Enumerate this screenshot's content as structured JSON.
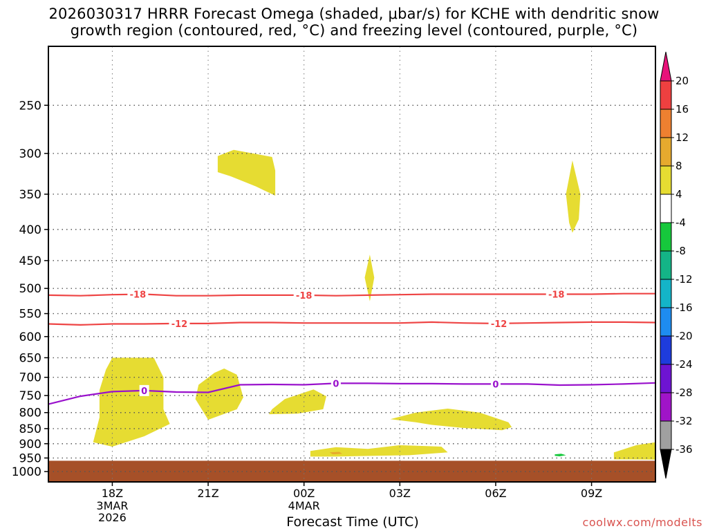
{
  "title_lines": [
    "2026030317 HRRR Forecast Omega (shaded, μbar/s) for KCHE with dendritic snow",
    "growth region (contoured, red, °C) and freezing level (contoured, purple, °C)"
  ],
  "credit": "coolwx.com/modelts",
  "chart_data": {
    "type": "time-height cross-section",
    "title": "2026030317 HRRR Forecast Omega (shaded, μbar/s) for KCHE with dendritic snow growth region (contoured, red, °C) and freezing level (contoured, purple, °C)",
    "xlabel": "Forecast Time (UTC)",
    "ylabel": "",
    "grid": true,
    "x_range_hours_after_2026030317Z": [
      -1,
      18
    ],
    "y_range_hPa": [
      200,
      1040
    ],
    "y_ticks": [
      250,
      300,
      350,
      400,
      450,
      500,
      550,
      600,
      650,
      700,
      750,
      800,
      850,
      900,
      950,
      1000
    ],
    "x_ticks": [
      {
        "t": 1,
        "label": "18Z",
        "sub": [
          "3MAR",
          "2026"
        ]
      },
      {
        "t": 4,
        "label": "21Z",
        "sub": []
      },
      {
        "t": 7,
        "label": "00Z",
        "sub": [
          "4MAR"
        ]
      },
      {
        "t": 10,
        "label": "03Z",
        "sub": []
      },
      {
        "t": 13,
        "label": "06Z",
        "sub": []
      },
      {
        "t": 16,
        "label": "09Z",
        "sub": []
      }
    ],
    "colorbar": {
      "bins": [
        {
          "from": 20,
          "to": null,
          "color": "#e8127a"
        },
        {
          "from": 16,
          "to": 20,
          "color": "#ee4040"
        },
        {
          "from": 12,
          "to": 16,
          "color": "#ee8030"
        },
        {
          "from": 8,
          "to": 12,
          "color": "#e6aa2e"
        },
        {
          "from": 4,
          "to": 8,
          "color": "#e6dc32"
        },
        {
          "from": -4,
          "to": 4,
          "color": "#ffffff"
        },
        {
          "from": -8,
          "to": -4,
          "color": "#16c83c"
        },
        {
          "from": -12,
          "to": -8,
          "color": "#14b487"
        },
        {
          "from": -16,
          "to": -12,
          "color": "#14b4c8"
        },
        {
          "from": -20,
          "to": -16,
          "color": "#1e8cf0"
        },
        {
          "from": -24,
          "to": -20,
          "color": "#1e3cdc"
        },
        {
          "from": -28,
          "to": -24,
          "color": "#6e14d2"
        },
        {
          "from": -32,
          "to": -28,
          "color": "#a014c8"
        },
        {
          "from": -36,
          "to": -32,
          "color": "#a0a0a0"
        },
        {
          "from": null,
          "to": -36,
          "color": "#000000"
        }
      ],
      "tick_labels": [
        "20",
        "16",
        "12",
        "8",
        "4",
        "-4",
        "-8",
        "-12",
        "-16",
        "-20",
        "-24",
        "-28",
        "-32",
        "-36"
      ]
    },
    "contours": [
      {
        "label": "-18",
        "color": "#ee4444",
        "points": [
          [
            -1,
            513
          ],
          [
            0,
            514
          ],
          [
            1,
            512
          ],
          [
            2,
            511
          ],
          [
            3,
            514
          ],
          [
            4,
            514
          ],
          [
            5,
            513
          ],
          [
            6,
            513
          ],
          [
            7,
            513
          ],
          [
            8,
            514
          ],
          [
            9,
            513
          ],
          [
            10,
            512
          ],
          [
            11,
            511
          ],
          [
            12,
            511
          ],
          [
            13,
            511
          ],
          [
            14,
            511
          ],
          [
            15,
            511
          ],
          [
            16,
            511
          ],
          [
            17,
            510
          ],
          [
            18,
            510
          ]
        ],
        "label_at": [
          1.8,
          7,
          14.9
        ]
      },
      {
        "label": "-12",
        "color": "#ee4444",
        "points": [
          [
            -1,
            572
          ],
          [
            0,
            574
          ],
          [
            1,
            572
          ],
          [
            2,
            572
          ],
          [
            3,
            571
          ],
          [
            4,
            571
          ],
          [
            5,
            569
          ],
          [
            6,
            569
          ],
          [
            7,
            570
          ],
          [
            8,
            570
          ],
          [
            9,
            570
          ],
          [
            10,
            570
          ],
          [
            11,
            568
          ],
          [
            12,
            570
          ],
          [
            13,
            571
          ],
          [
            14,
            570
          ],
          [
            15,
            569
          ],
          [
            16,
            568
          ],
          [
            17,
            568
          ],
          [
            18,
            569
          ]
        ],
        "label_at": [
          3.1,
          13.1
        ]
      },
      {
        "label": "0",
        "color": "#9911cc",
        "points": [
          [
            -1,
            775
          ],
          [
            0,
            752
          ],
          [
            1,
            739
          ],
          [
            2,
            736
          ],
          [
            3,
            740
          ],
          [
            4,
            741
          ],
          [
            5,
            720
          ],
          [
            6,
            719
          ],
          [
            7,
            720
          ],
          [
            8,
            716
          ],
          [
            9,
            716
          ],
          [
            10,
            717
          ],
          [
            11,
            717
          ],
          [
            12,
            718
          ],
          [
            13,
            718
          ],
          [
            14,
            718
          ],
          [
            15,
            721
          ],
          [
            16,
            720
          ],
          [
            17,
            718
          ],
          [
            18,
            715
          ]
        ],
        "label_at": [
          2,
          8,
          13
        ]
      }
    ],
    "shaded_regions": [
      {
        "color_bin": "4 to 8",
        "outline": [
          [
            1,
            650
          ],
          [
            2.3,
            650
          ],
          [
            2.6,
            700
          ],
          [
            2.6,
            790
          ],
          [
            2.8,
            835
          ],
          [
            2,
            875
          ],
          [
            1,
            910
          ],
          [
            0.4,
            895
          ],
          [
            0.6,
            815
          ],
          [
            0.6,
            735
          ],
          [
            0.8,
            680
          ]
        ]
      },
      {
        "color_bin": "4 to 8",
        "outline": [
          [
            4.3,
            322
          ],
          [
            4.3,
            303
          ],
          [
            4.8,
            296
          ],
          [
            6,
            304
          ],
          [
            6.1,
            320
          ],
          [
            6.1,
            352
          ],
          [
            5.5,
            340
          ],
          [
            4.7,
            327
          ]
        ]
      },
      {
        "color_bin": "4 to 8",
        "outline": [
          [
            4.5,
            677
          ],
          [
            4.9,
            693
          ],
          [
            5.1,
            755
          ],
          [
            4.9,
            790
          ],
          [
            4,
            822
          ],
          [
            3.6,
            760
          ],
          [
            3.7,
            720
          ],
          [
            4.2,
            688
          ]
        ]
      },
      {
        "color_bin": "4 to 8",
        "outline": [
          [
            6.4,
            760
          ],
          [
            7.3,
            733
          ],
          [
            7.7,
            752
          ],
          [
            7.6,
            790
          ],
          [
            6.8,
            803
          ],
          [
            5.9,
            805
          ],
          [
            6,
            790
          ]
        ]
      },
      {
        "color_bin": "4 to 8",
        "outline": [
          [
            9.06,
            440
          ],
          [
            9.2,
            480
          ],
          [
            9.06,
            525
          ],
          [
            8.9,
            480
          ]
        ]
      },
      {
        "color_bin": "4 to 8",
        "outline": [
          [
            15.4,
            308
          ],
          [
            15.65,
            350
          ],
          [
            15.6,
            385
          ],
          [
            15.4,
            405
          ],
          [
            15.3,
            390
          ],
          [
            15.2,
            350
          ]
        ]
      },
      {
        "color_bin": "4 to 8",
        "outline": [
          [
            10.5,
            800
          ],
          [
            11.5,
            788
          ],
          [
            12.5,
            800
          ],
          [
            13.4,
            830
          ],
          [
            13.5,
            845
          ],
          [
            13.2,
            855
          ],
          [
            12,
            848
          ],
          [
            11,
            838
          ],
          [
            10.5,
            830
          ],
          [
            9.7,
            820
          ]
        ]
      },
      {
        "color_bin": "4 to 8",
        "outline": [
          [
            7.2,
            925
          ],
          [
            8,
            912
          ],
          [
            9,
            918
          ],
          [
            10,
            905
          ],
          [
            11.3,
            910
          ],
          [
            11.5,
            930
          ],
          [
            10.3,
            940
          ],
          [
            9.2,
            942
          ],
          [
            8,
            945
          ],
          [
            7.2,
            945
          ]
        ]
      },
      {
        "color_bin": "8 to 12",
        "outline": [
          [
            7.8,
            930
          ],
          [
            8.1,
            928
          ],
          [
            8.2,
            935
          ],
          [
            7.9,
            937
          ]
        ]
      },
      {
        "color_bin": "4 to 8",
        "outline": [
          [
            16.7,
            930
          ],
          [
            17.4,
            905
          ],
          [
            18,
            895
          ],
          [
            18,
            956
          ],
          [
            16.7,
            955
          ]
        ]
      },
      {
        "color_bin": "-8 to -4",
        "outline": [
          [
            14.85,
            937
          ],
          [
            15.05,
            935
          ],
          [
            15.2,
            940
          ],
          [
            15,
            944
          ],
          [
            14.85,
            942
          ]
        ]
      }
    ],
    "surface": {
      "color": "#a65028",
      "top_hPa": 960
    }
  }
}
